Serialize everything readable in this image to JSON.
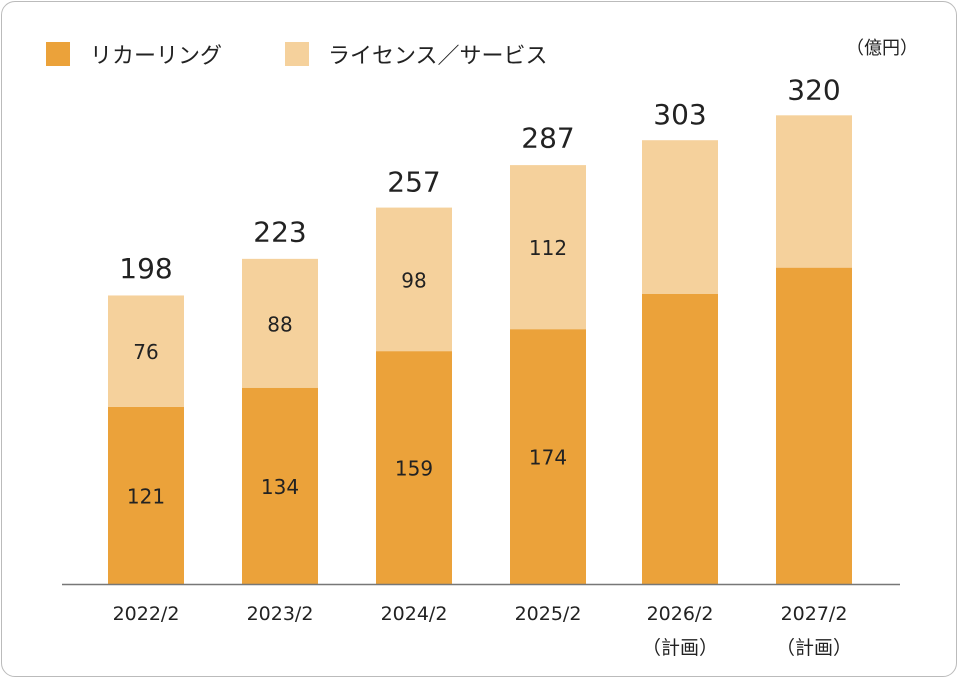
{
  "chart_data": {
    "type": "bar",
    "stacked": true,
    "unit": "（億円）",
    "categories": [
      "2022/2",
      "2023/2",
      "2024/2",
      "2025/2",
      "2026/2",
      "2027/2"
    ],
    "category_notes": [
      "",
      "",
      "",
      "",
      "（計画）",
      "（計画）"
    ],
    "series": [
      {
        "name": "リカーリング",
        "color": "#EBA23A",
        "values": [
          121,
          134,
          159,
          174,
          198,
          216
        ],
        "labels_shown": [
          true,
          true,
          true,
          true,
          false,
          false
        ]
      },
      {
        "name": "ライセンス／サービス",
        "color": "#F5D19C",
        "values": [
          76,
          88,
          98,
          112,
          105,
          104
        ],
        "labels_shown": [
          true,
          true,
          true,
          true,
          false,
          false
        ]
      }
    ],
    "totals": [
      198,
      223,
      257,
      287,
      303,
      320
    ],
    "ylim": [
      0,
      330
    ],
    "grid": false,
    "legend": "top-left"
  }
}
